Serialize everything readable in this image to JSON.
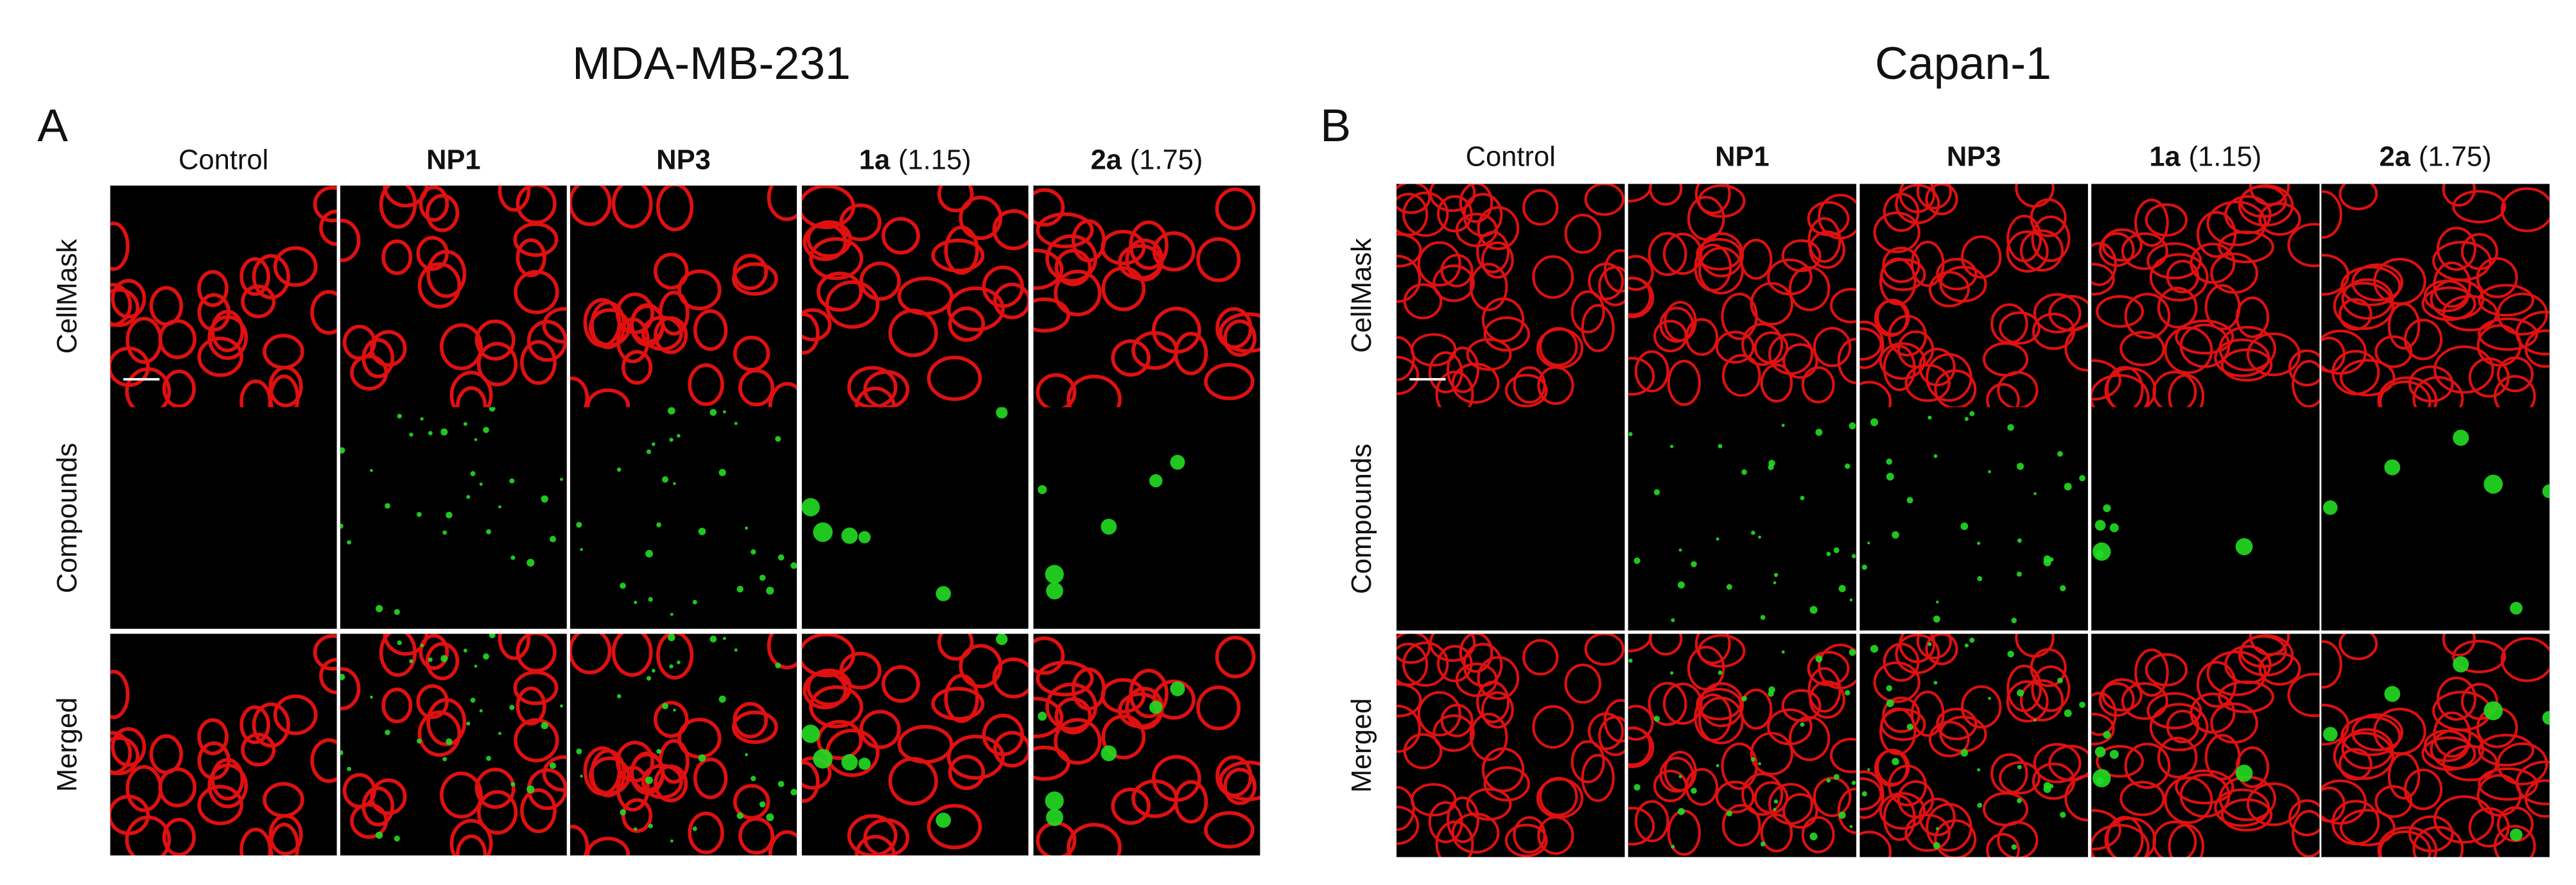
{
  "panels": [
    {
      "letter": "A",
      "title": "MDA-MB-231",
      "columns": [
        {
          "text": "Control"
        },
        {
          "bold": "NP1"
        },
        {
          "bold": "NP3"
        },
        {
          "bold": "1a",
          "text": "(1.15)"
        },
        {
          "bold": "2a",
          "text": "(1.75)"
        }
      ],
      "rows": [
        "CellMask",
        "Compounds",
        "Merged"
      ]
    },
    {
      "letter": "B",
      "title": "Capan-1",
      "columns": [
        {
          "text": "Control"
        },
        {
          "bold": "NP1"
        },
        {
          "bold": "NP3"
        },
        {
          "bold": "1a",
          "text": "(1.15)"
        },
        {
          "bold": "2a",
          "text": "(1.75)"
        }
      ],
      "rows": [
        "CellMask",
        "Compounds",
        "Merged"
      ]
    }
  ]
}
